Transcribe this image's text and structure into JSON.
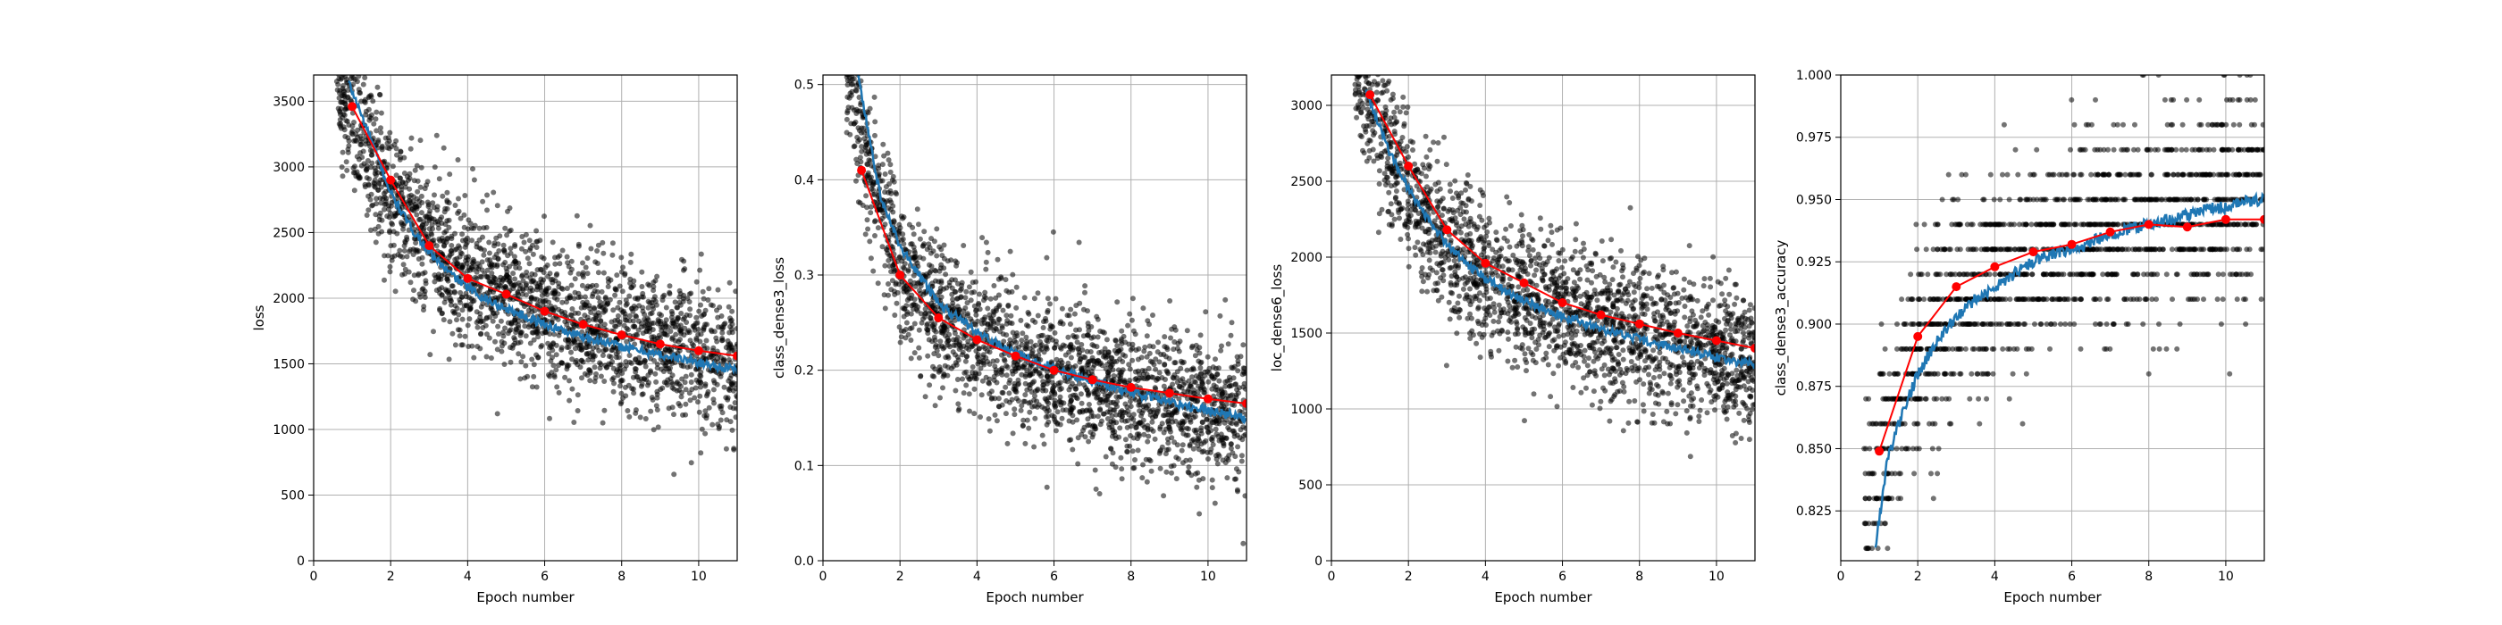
{
  "chart_data": [
    {
      "type": "scatter",
      "xlabel": "Epoch number",
      "ylabel": "loss",
      "xlim": [
        0,
        11
      ],
      "ylim": [
        0,
        3700
      ],
      "xticks": [
        0,
        2,
        4,
        6,
        8,
        10
      ],
      "yticks": [
        0,
        500,
        1000,
        1500,
        2000,
        2500,
        3000,
        3500
      ],
      "grid": true,
      "series": [
        {
          "kind": "points",
          "color": "#000000",
          "x": [
            0.5,
            1,
            1.5,
            2,
            2.5,
            3,
            3.5,
            4,
            4.5,
            5,
            5.5,
            6,
            6.5,
            7,
            7.5,
            8,
            8.5,
            9,
            9.5,
            10,
            10.5,
            11
          ],
          "y": [
            3750,
            3450,
            3100,
            2800,
            2600,
            2400,
            2300,
            2180,
            2100,
            2020,
            1960,
            1900,
            1850,
            1800,
            1760,
            1720,
            1680,
            1650,
            1620,
            1590,
            1560,
            1530
          ]
        },
        {
          "kind": "running-mean",
          "color": "#1f77b4",
          "x": [
            0.9,
            1.5,
            2,
            2.5,
            3,
            3.5,
            4,
            4.5,
            5,
            5.5,
            6,
            6.5,
            7,
            7.5,
            8,
            8.5,
            9,
            9.5,
            10,
            10.5,
            11
          ],
          "y": [
            3650,
            3200,
            2800,
            2550,
            2350,
            2200,
            2080,
            1990,
            1920,
            1860,
            1800,
            1750,
            1710,
            1670,
            1630,
            1600,
            1570,
            1540,
            1510,
            1480,
            1450
          ]
        },
        {
          "kind": "epoch-mean",
          "color": "#ff0000",
          "x": [
            1,
            2,
            3,
            4,
            5,
            6,
            7,
            8,
            9,
            10,
            11
          ],
          "y": [
            3460,
            2900,
            2400,
            2150,
            2030,
            1900,
            1800,
            1720,
            1650,
            1600,
            1560
          ]
        }
      ]
    },
    {
      "type": "scatter",
      "xlabel": "Epoch number",
      "ylabel": "class_dense3_loss",
      "xlim": [
        0,
        11
      ],
      "ylim": [
        0,
        0.51
      ],
      "xticks": [
        0,
        2,
        4,
        6,
        8,
        10
      ],
      "yticks": [
        "0.0",
        "0.1",
        "0.2",
        "0.3",
        "0.4",
        "0.5"
      ],
      "grid": true,
      "series": [
        {
          "kind": "points",
          "color": "#000000",
          "x": [
            0.5,
            1,
            1.5,
            2,
            2.5,
            3,
            3.5,
            4,
            4.5,
            5,
            5.5,
            6,
            6.5,
            7,
            7.5,
            8,
            8.5,
            9,
            9.5,
            10,
            10.5,
            11
          ],
          "y": [
            0.55,
            0.45,
            0.37,
            0.31,
            0.28,
            0.26,
            0.245,
            0.235,
            0.225,
            0.215,
            0.207,
            0.2,
            0.194,
            0.188,
            0.183,
            0.178,
            0.173,
            0.169,
            0.165,
            0.161,
            0.157,
            0.153
          ]
        },
        {
          "kind": "running-mean",
          "color": "#1f77b4",
          "x": [
            0.9,
            1.5,
            2,
            2.5,
            3,
            3.5,
            4,
            4.5,
            5,
            5.5,
            6,
            6.5,
            7,
            7.5,
            8,
            8.5,
            9,
            9.5,
            10,
            10.5,
            11
          ],
          "y": [
            0.51,
            0.38,
            0.33,
            0.3,
            0.27,
            0.255,
            0.24,
            0.228,
            0.218,
            0.21,
            0.202,
            0.195,
            0.189,
            0.183,
            0.177,
            0.172,
            0.167,
            0.162,
            0.158,
            0.154,
            0.15
          ]
        },
        {
          "kind": "epoch-mean",
          "color": "#ff0000",
          "x": [
            1,
            2,
            3,
            4,
            5,
            6,
            7,
            8,
            9,
            10,
            11
          ],
          "y": [
            0.41,
            0.3,
            0.255,
            0.232,
            0.215,
            0.2,
            0.19,
            0.182,
            0.176,
            0.17,
            0.165
          ]
        }
      ]
    },
    {
      "type": "scatter",
      "xlabel": "Epoch number",
      "ylabel": "loc_dense6_loss",
      "xlim": [
        0,
        11
      ],
      "ylim": [
        0,
        3200
      ],
      "xticks": [
        0,
        2,
        4,
        6,
        8,
        10
      ],
      "yticks": [
        0,
        500,
        1000,
        1500,
        2000,
        2500,
        3000
      ],
      "grid": true,
      "series": [
        {
          "kind": "points",
          "color": "#000000",
          "x": [
            0.5,
            1,
            1.5,
            2,
            2.5,
            3,
            3.5,
            4,
            4.5,
            5,
            5.5,
            6,
            6.5,
            7,
            7.5,
            8,
            8.5,
            9,
            9.5,
            10,
            10.5,
            11
          ],
          "y": [
            3300,
            3000,
            2700,
            2450,
            2250,
            2100,
            1980,
            1880,
            1800,
            1730,
            1680,
            1630,
            1590,
            1550,
            1510,
            1480,
            1450,
            1420,
            1390,
            1370,
            1340,
            1320
          ]
        },
        {
          "kind": "running-mean",
          "color": "#1f77b4",
          "x": [
            0.9,
            1.5,
            2,
            2.5,
            3,
            3.5,
            4,
            4.5,
            5,
            5.5,
            6,
            6.5,
            7,
            7.5,
            8,
            8.5,
            9,
            9.5,
            10,
            10.5,
            11
          ],
          "y": [
            3100,
            2700,
            2450,
            2250,
            2090,
            1960,
            1860,
            1780,
            1710,
            1660,
            1610,
            1570,
            1530,
            1490,
            1460,
            1430,
            1400,
            1370,
            1340,
            1310,
            1290
          ]
        },
        {
          "kind": "epoch-mean",
          "color": "#ff0000",
          "x": [
            1,
            2,
            3,
            4,
            5,
            6,
            7,
            8,
            9,
            10,
            11
          ],
          "y": [
            3070,
            2600,
            2180,
            1960,
            1830,
            1700,
            1620,
            1560,
            1500,
            1450,
            1400
          ]
        }
      ]
    },
    {
      "type": "scatter",
      "xlabel": "Epoch number",
      "ylabel": "class_dense3_accuracy",
      "xlim": [
        0,
        11
      ],
      "ylim": [
        0.805,
        1.0
      ],
      "xticks": [
        0,
        2,
        4,
        6,
        8,
        10
      ],
      "yticks": [
        "0.825",
        "0.850",
        "0.875",
        "0.900",
        "0.925",
        "0.950",
        "0.975",
        "1.000"
      ],
      "grid": true,
      "series": [
        {
          "kind": "points",
          "color": "#000000",
          "x": [
            0.5,
            1,
            1.5,
            2,
            2.5,
            3,
            3.5,
            4,
            4.5,
            5,
            5.5,
            6,
            6.5,
            7,
            7.5,
            8,
            8.5,
            9,
            9.5,
            10,
            10.5,
            11
          ],
          "y": [
            0.81,
            0.845,
            0.87,
            0.89,
            0.9,
            0.91,
            0.915,
            0.92,
            0.925,
            0.93,
            0.93,
            0.935,
            0.935,
            0.94,
            0.94,
            0.94,
            0.945,
            0.945,
            0.945,
            0.95,
            0.95,
            0.95
          ]
        },
        {
          "kind": "running-mean",
          "color": "#1f77b4",
          "x": [
            0.9,
            1.2,
            1.5,
            2,
            2.5,
            3,
            3.5,
            4,
            4.5,
            5,
            5.5,
            6,
            6.5,
            7,
            7.5,
            8,
            8.5,
            9,
            9.5,
            10,
            10.5,
            11
          ],
          "y": [
            0.81,
            0.845,
            0.86,
            0.88,
            0.893,
            0.903,
            0.91,
            0.915,
            0.92,
            0.925,
            0.928,
            0.93,
            0.933,
            0.936,
            0.938,
            0.94,
            0.942,
            0.944,
            0.946,
            0.947,
            0.949,
            0.95
          ]
        },
        {
          "kind": "epoch-mean",
          "color": "#ff0000",
          "x": [
            1,
            2,
            3,
            4,
            5,
            6,
            7,
            8,
            9,
            10,
            11
          ],
          "y": [
            0.849,
            0.895,
            0.915,
            0.923,
            0.929,
            0.932,
            0.937,
            0.94,
            0.939,
            0.942,
            0.942
          ]
        }
      ]
    }
  ]
}
